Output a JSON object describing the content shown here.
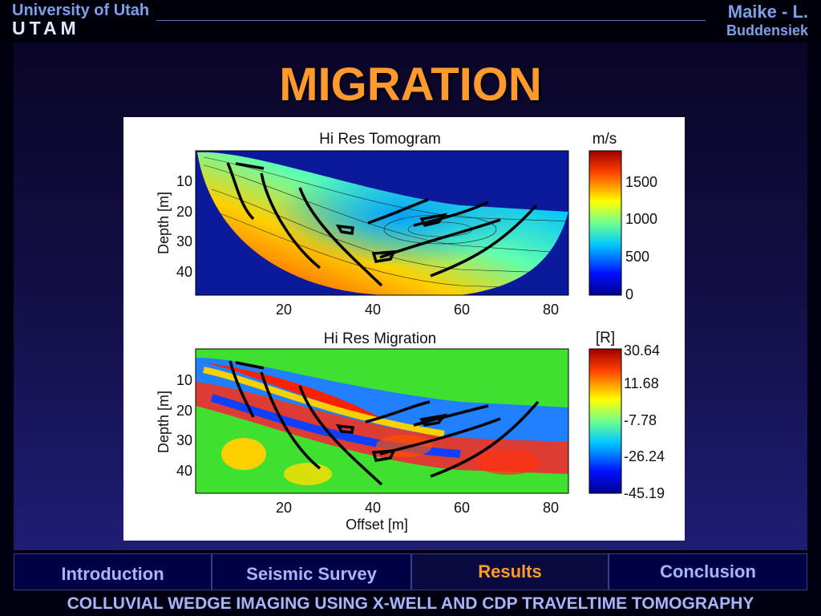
{
  "header": {
    "university": "University of Utah",
    "lab": "UTAM",
    "author_line1": "Maike - L.",
    "author_line2": "Buddensiek"
  },
  "slide": {
    "title": "MIGRATION"
  },
  "figure": {
    "top": {
      "title": "Hi Res Tomogram",
      "ylabel": "Depth [m]",
      "y_ticks": [
        "10",
        "20",
        "30",
        "40"
      ],
      "x_ticks": [
        "20",
        "40",
        "60",
        "80"
      ],
      "colorbar_unit": "m/s",
      "colorbar_ticks": [
        "1500",
        "1000",
        "500",
        "0"
      ]
    },
    "bottom": {
      "title": "Hi Res Migration",
      "ylabel": "Depth [m]",
      "xlabel": "Offset [m]",
      "y_ticks": [
        "10",
        "20",
        "30",
        "40"
      ],
      "x_ticks": [
        "20",
        "40",
        "60",
        "80"
      ],
      "colorbar_unit": "[R]",
      "colorbar_ticks": [
        "30.64",
        "11.68",
        "-7.78",
        "-26.24",
        "-45.19"
      ]
    }
  },
  "nav": {
    "introduction": "Introduction",
    "seismic_survey": "Seismic Survey",
    "results": "Results",
    "conclusion": "Conclusion"
  },
  "footer": "COLLUVIAL WEDGE IMAGING USING X-WELL AND CDP TRAVELTIME TOMOGRAPHY"
}
